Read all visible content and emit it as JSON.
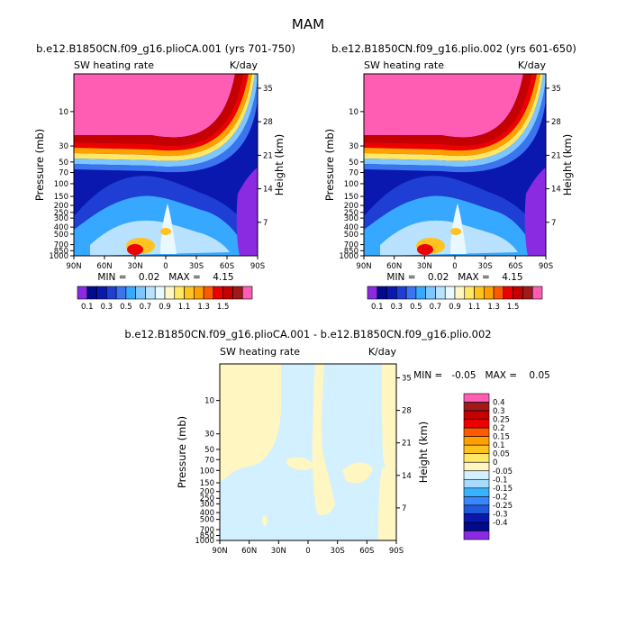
{
  "page_title": "MAM",
  "colors": {
    "pos": [
      "#fff6c2",
      "#ffe866",
      "#ffc320",
      "#ff9f00",
      "#ff5a00",
      "#ee0000",
      "#c40000",
      "#a01a1a",
      "#ff5cb4"
    ],
    "neg": [
      "#d2f0ff",
      "#a8dcff",
      "#36b2ff",
      "#3a86ff",
      "#1f5adb",
      "#0a18b0",
      "#000a8c",
      "#8a2be2"
    ],
    "full": [
      "#8a2be2",
      "#000a8c",
      "#0a18b0",
      "#1f3fd4",
      "#3a74ef",
      "#36a8ff",
      "#7ec6ff",
      "#b8e2ff",
      "#eaf8ff",
      "#fff6c2",
      "#ffe866",
      "#ffc320",
      "#ff9f00",
      "#ff5a00",
      "#ee0000",
      "#c40000",
      "#a01a1a",
      "#ff5cb4"
    ]
  },
  "chart_data": [
    {
      "type": "contour",
      "title": "b.e12.B1850CN.f09_g16.plioCA.001 (yrs 701-750)",
      "subtitle_left": "SW heating rate",
      "subtitle_right": "K/day",
      "ylabel": "Pressure (mb)",
      "ylabel_right": "Height (km)",
      "x_ticks": [
        "90N",
        "60N",
        "30N",
        "0",
        "30S",
        "60S",
        "90S"
      ],
      "y_ticks": [
        "10",
        "30",
        "50",
        "70",
        "100",
        "150",
        "200",
        "250",
        "300",
        "400",
        "500",
        "700",
        "850",
        "1000"
      ],
      "y_right_ticks": [
        "35",
        "28",
        "21",
        "14",
        "7"
      ],
      "min_max": "MIN =    0.02   MAX =    4.15",
      "min": 0.02,
      "max": 4.15
    },
    {
      "type": "contour",
      "title": "b.e12.B1850CN.f09_g16.plio.002 (yrs 601-650)",
      "subtitle_left": "SW heating rate",
      "subtitle_right": "K/day",
      "ylabel": "Pressure (mb)",
      "ylabel_right": "Height (km)",
      "x_ticks": [
        "90N",
        "60N",
        "30N",
        "0",
        "30S",
        "60S",
        "90S"
      ],
      "y_ticks": [
        "10",
        "30",
        "50",
        "70",
        "100",
        "150",
        "200",
        "250",
        "300",
        "400",
        "500",
        "700",
        "850",
        "1000"
      ],
      "y_right_ticks": [
        "35",
        "28",
        "21",
        "14",
        "7"
      ],
      "min_max": "MIN =    0.02   MAX =    4.15",
      "min": 0.02,
      "max": 4.15
    },
    {
      "type": "contour",
      "title": "b.e12.B1850CN.f09_g16.plioCA.001 - b.e12.B1850CN.f09_g16.plio.002",
      "subtitle_left": "SW heating rate",
      "subtitle_right": "K/day",
      "ylabel": "Pressure (mb)",
      "ylabel_right": "Height (km)",
      "x_ticks": [
        "90N",
        "60N",
        "30N",
        "0",
        "30S",
        "60S",
        "90S"
      ],
      "y_ticks": [
        "10",
        "30",
        "50",
        "70",
        "100",
        "150",
        "200",
        "250",
        "300",
        "400",
        "500",
        "700",
        "850",
        "1000"
      ],
      "y_right_ticks": [
        "35",
        "28",
        "21",
        "14",
        "7"
      ],
      "min_max": "MIN =   -0.05   MAX =    0.05",
      "min": -0.05,
      "max": 0.05
    }
  ],
  "colorbar_top": {
    "labels": [
      "0.1",
      "0.3",
      "0.5",
      "0.7",
      "0.9",
      "1.1",
      "1.3",
      "1.5"
    ]
  },
  "colorbar_diff": {
    "labels": [
      "0.4",
      "0.3",
      "0.25",
      "0.2",
      "0.15",
      "0.1",
      "0.05",
      "0",
      "-0.05",
      "-0.1",
      "-0.15",
      "-0.2",
      "-0.25",
      "-0.3",
      "-0.4"
    ]
  }
}
